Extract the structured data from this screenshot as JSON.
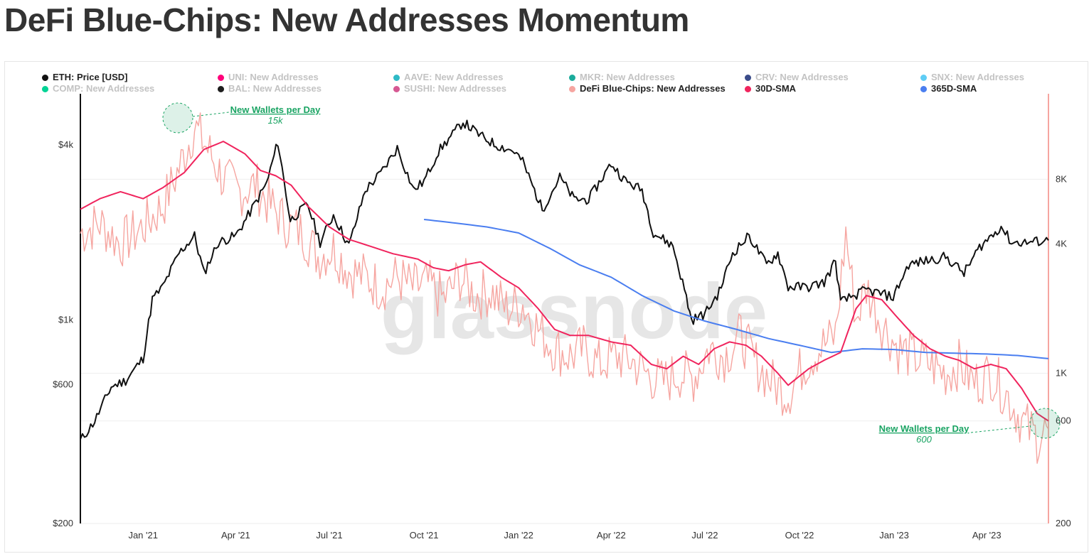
{
  "page": {
    "title": "DeFi Blue-Chips: New Addresses Momentum"
  },
  "watermark": "glassnode",
  "legend": [
    {
      "label": "ETH: Price [USD]",
      "color": "#111111",
      "active": true
    },
    {
      "label": "UNI: New Addresses",
      "color": "#ff007a",
      "active": false
    },
    {
      "label": "AAVE: New Addresses",
      "color": "#2ebac6",
      "active": false
    },
    {
      "label": "MKR: New Addresses",
      "color": "#1aab9b",
      "active": false
    },
    {
      "label": "CRV: New Addresses",
      "color": "#3a4c8a",
      "active": false
    },
    {
      "label": "SNX: New Addresses",
      "color": "#5fcdf5",
      "active": false
    },
    {
      "label": "COMP: New Addresses",
      "color": "#00d395",
      "active": false
    },
    {
      "label": "BAL: New Addresses",
      "color": "#1e1e1e",
      "active": false
    },
    {
      "label": "SUSHI: New Addresses",
      "color": "#d65892",
      "active": false
    },
    {
      "label": "DeFi Blue-Chips: New Addresses",
      "color": "#f6a5a0",
      "active": true
    },
    {
      "label": "30D-SMA",
      "color": "#f0245d",
      "active": true
    },
    {
      "label": "365D-SMA",
      "color": "#4a7ef0",
      "active": true
    }
  ],
  "annotations": [
    {
      "title": "New Wallets per Day",
      "value": "15k"
    },
    {
      "title": "New Wallets per Day",
      "value": "600"
    }
  ],
  "chart_data": {
    "type": "line",
    "title": "DeFi Blue-Chips: New Addresses Momentum",
    "x_ticks": [
      "Jan '21",
      "Apr '21",
      "Jul '21",
      "Oct '21",
      "Jan '22",
      "Apr '22",
      "Jul '22",
      "Oct '22",
      "Jan '23",
      "Apr '23"
    ],
    "x_range": [
      "2020-11-01",
      "2023-05-31"
    ],
    "y_left": {
      "scale": "log",
      "range": [
        200,
        6000
      ],
      "ticks": [
        200,
        600,
        1000,
        4000
      ],
      "tick_labels": [
        "$200",
        "$600",
        "$1k",
        "$4k"
      ],
      "unit": "USD"
    },
    "y_right": {
      "scale": "log",
      "range": [
        200,
        20000
      ],
      "ticks": [
        200,
        600,
        1000,
        4000,
        8000
      ],
      "tick_labels": [
        "200",
        "600",
        "1K",
        "4K",
        "8K"
      ]
    },
    "grid": true,
    "legend_position": "top",
    "series": [
      {
        "name": "ETH: Price [USD]",
        "axis": "left",
        "color": "#111111",
        "points": [
          [
            "2020-11-01",
            385
          ],
          [
            "2020-11-15",
            450
          ],
          [
            "2020-12-01",
            590
          ],
          [
            "2020-12-15",
            620
          ],
          [
            "2021-01-01",
            740
          ],
          [
            "2021-01-10",
            1180
          ],
          [
            "2021-01-20",
            1300
          ],
          [
            "2021-02-05",
            1700
          ],
          [
            "2021-02-20",
            1950
          ],
          [
            "2021-03-01",
            1450
          ],
          [
            "2021-03-15",
            1850
          ],
          [
            "2021-04-01",
            1950
          ],
          [
            "2021-04-15",
            2350
          ],
          [
            "2021-05-01",
            2950
          ],
          [
            "2021-05-12",
            4100
          ],
          [
            "2021-05-24",
            2200
          ],
          [
            "2021-06-10",
            2500
          ],
          [
            "2021-06-22",
            1850
          ],
          [
            "2021-07-05",
            2300
          ],
          [
            "2021-07-20",
            1800
          ],
          [
            "2021-08-05",
            2800
          ],
          [
            "2021-08-20",
            3200
          ],
          [
            "2021-09-05",
            3900
          ],
          [
            "2021-09-21",
            2800
          ],
          [
            "2021-10-01",
            3000
          ],
          [
            "2021-10-15",
            3800
          ],
          [
            "2021-11-08",
            4800
          ],
          [
            "2021-11-25",
            4300
          ],
          [
            "2021-12-10",
            4000
          ],
          [
            "2021-12-28",
            3800
          ],
          [
            "2022-01-05",
            3500
          ],
          [
            "2022-01-24",
            2400
          ],
          [
            "2022-02-10",
            3100
          ],
          [
            "2022-02-24",
            2600
          ],
          [
            "2022-03-10",
            2600
          ],
          [
            "2022-04-01",
            3450
          ],
          [
            "2022-04-15",
            3000
          ],
          [
            "2022-05-01",
            2800
          ],
          [
            "2022-05-12",
            2000
          ],
          [
            "2022-05-31",
            1800
          ],
          [
            "2022-06-13",
            1200
          ],
          [
            "2022-06-18",
            1000
          ],
          [
            "2022-07-01",
            1050
          ],
          [
            "2022-07-15",
            1250
          ],
          [
            "2022-07-28",
            1700
          ],
          [
            "2022-08-13",
            1950
          ],
          [
            "2022-08-30",
            1550
          ],
          [
            "2022-09-10",
            1700
          ],
          [
            "2022-09-20",
            1300
          ],
          [
            "2022-10-10",
            1300
          ],
          [
            "2022-10-25",
            1350
          ],
          [
            "2022-11-05",
            1600
          ],
          [
            "2022-11-10",
            1150
          ],
          [
            "2022-11-20",
            1200
          ],
          [
            "2022-12-05",
            1270
          ],
          [
            "2022-12-31",
            1200
          ],
          [
            "2023-01-15",
            1550
          ],
          [
            "2023-02-01",
            1600
          ],
          [
            "2023-02-20",
            1650
          ],
          [
            "2023-03-10",
            1450
          ],
          [
            "2023-03-25",
            1780
          ],
          [
            "2023-04-15",
            2100
          ],
          [
            "2023-04-25",
            1850
          ],
          [
            "2023-05-10",
            1850
          ],
          [
            "2023-05-31",
            1880
          ]
        ]
      },
      {
        "name": "DeFi Blue-Chips: New Addresses",
        "axis": "right",
        "color": "#f6a5a0",
        "points": [
          [
            "2020-11-01",
            4500
          ],
          [
            "2020-11-20",
            5000
          ],
          [
            "2020-12-10",
            4000
          ],
          [
            "2021-01-01",
            4800
          ],
          [
            "2021-01-20",
            6000
          ],
          [
            "2021-02-05",
            9000
          ],
          [
            "2021-02-20",
            14000
          ],
          [
            "2021-03-05",
            11000
          ],
          [
            "2021-03-20",
            8000
          ],
          [
            "2021-04-05",
            7000
          ],
          [
            "2021-04-20",
            7500
          ],
          [
            "2021-05-05",
            6000
          ],
          [
            "2021-05-20",
            5000
          ],
          [
            "2021-06-05",
            4500
          ],
          [
            "2021-06-20",
            3500
          ],
          [
            "2021-07-05",
            3800
          ],
          [
            "2021-07-20",
            3000
          ],
          [
            "2021-08-05",
            2800
          ],
          [
            "2021-08-20",
            2500
          ],
          [
            "2021-09-05",
            2800
          ],
          [
            "2021-09-20",
            2500
          ],
          [
            "2021-10-05",
            2600
          ],
          [
            "2021-10-20",
            2200
          ],
          [
            "2021-11-05",
            2800
          ],
          [
            "2021-11-20",
            2300
          ],
          [
            "2021-12-05",
            2400
          ],
          [
            "2021-12-20",
            2000
          ],
          [
            "2022-01-05",
            2100
          ],
          [
            "2022-01-20",
            1600
          ],
          [
            "2022-02-05",
            1300
          ],
          [
            "2022-02-20",
            1200
          ],
          [
            "2022-03-05",
            1300
          ],
          [
            "2022-03-20",
            1100
          ],
          [
            "2022-04-05",
            1200
          ],
          [
            "2022-04-20",
            1150
          ],
          [
            "2022-05-05",
            1000
          ],
          [
            "2022-05-20",
            900
          ],
          [
            "2022-06-05",
            1000
          ],
          [
            "2022-06-20",
            950
          ],
          [
            "2022-07-05",
            1300
          ],
          [
            "2022-07-20",
            1200
          ],
          [
            "2022-08-05",
            1500
          ],
          [
            "2022-08-20",
            1100
          ],
          [
            "2022-09-05",
            900
          ],
          [
            "2022-09-20",
            800
          ],
          [
            "2022-10-05",
            1100
          ],
          [
            "2022-10-20",
            1300
          ],
          [
            "2022-11-05",
            1500
          ],
          [
            "2022-11-15",
            4500
          ],
          [
            "2022-11-25",
            1800
          ],
          [
            "2022-12-05",
            2500
          ],
          [
            "2022-12-20",
            1700
          ],
          [
            "2023-01-05",
            1300
          ],
          [
            "2023-01-20",
            1200
          ],
          [
            "2023-02-05",
            1100
          ],
          [
            "2023-02-20",
            1000
          ],
          [
            "2023-03-05",
            1100
          ],
          [
            "2023-03-20",
            900
          ],
          [
            "2023-04-05",
            1000
          ],
          [
            "2023-04-20",
            800
          ],
          [
            "2023-05-05",
            600
          ],
          [
            "2023-05-20",
            500
          ],
          [
            "2023-05-31",
            550
          ]
        ]
      },
      {
        "name": "30D-SMA",
        "axis": "right",
        "color": "#f0245d",
        "points": [
          [
            "2020-11-01",
            5800
          ],
          [
            "2020-11-20",
            6500
          ],
          [
            "2020-12-10",
            7000
          ],
          [
            "2021-01-01",
            6500
          ],
          [
            "2021-01-20",
            7300
          ],
          [
            "2021-02-10",
            8600
          ],
          [
            "2021-03-01",
            11000
          ],
          [
            "2021-03-20",
            12000
          ],
          [
            "2021-04-10",
            10500
          ],
          [
            "2021-04-25",
            8800
          ],
          [
            "2021-05-10",
            8300
          ],
          [
            "2021-05-25",
            7500
          ],
          [
            "2021-06-10",
            6000
          ],
          [
            "2021-07-01",
            4800
          ],
          [
            "2021-07-20",
            4200
          ],
          [
            "2021-08-10",
            3900
          ],
          [
            "2021-09-01",
            3600
          ],
          [
            "2021-09-25",
            3400
          ],
          [
            "2021-10-10",
            3100
          ],
          [
            "2021-10-25",
            3000
          ],
          [
            "2021-11-10",
            3200
          ],
          [
            "2021-11-25",
            3300
          ],
          [
            "2021-12-15",
            2800
          ],
          [
            "2022-01-01",
            2500
          ],
          [
            "2022-01-20",
            2000
          ],
          [
            "2022-02-05",
            1600
          ],
          [
            "2022-02-20",
            1500
          ],
          [
            "2022-03-10",
            1500
          ],
          [
            "2022-04-01",
            1400
          ],
          [
            "2022-04-20",
            1350
          ],
          [
            "2022-05-10",
            1100
          ],
          [
            "2022-05-25",
            1050
          ],
          [
            "2022-06-10",
            1200
          ],
          [
            "2022-06-25",
            1100
          ],
          [
            "2022-07-10",
            1300
          ],
          [
            "2022-07-25",
            1400
          ],
          [
            "2022-08-10",
            1350
          ],
          [
            "2022-08-25",
            1200
          ],
          [
            "2022-09-10",
            1000
          ],
          [
            "2022-09-20",
            880
          ],
          [
            "2022-10-10",
            1050
          ],
          [
            "2022-10-25",
            1150
          ],
          [
            "2022-11-10",
            1250
          ],
          [
            "2022-11-25",
            2000
          ],
          [
            "2022-12-05",
            2300
          ],
          [
            "2022-12-20",
            2200
          ],
          [
            "2023-01-05",
            1800
          ],
          [
            "2023-01-20",
            1500
          ],
          [
            "2023-02-05",
            1300
          ],
          [
            "2023-02-20",
            1200
          ],
          [
            "2023-03-05",
            1150
          ],
          [
            "2023-03-20",
            1050
          ],
          [
            "2023-04-05",
            1100
          ],
          [
            "2023-04-20",
            1050
          ],
          [
            "2023-05-05",
            850
          ],
          [
            "2023-05-20",
            650
          ],
          [
            "2023-05-31",
            600
          ]
        ]
      },
      {
        "name": "365D-SMA",
        "axis": "right",
        "color": "#4a7ef0",
        "points": [
          [
            "2021-10-01",
            5200
          ],
          [
            "2021-11-01",
            5000
          ],
          [
            "2021-12-01",
            4800
          ],
          [
            "2022-01-01",
            4500
          ],
          [
            "2022-02-01",
            3800
          ],
          [
            "2022-03-01",
            3200
          ],
          [
            "2022-04-01",
            2800
          ],
          [
            "2022-05-01",
            2300
          ],
          [
            "2022-06-01",
            1950
          ],
          [
            "2022-07-01",
            1750
          ],
          [
            "2022-08-01",
            1600
          ],
          [
            "2022-09-01",
            1450
          ],
          [
            "2022-10-01",
            1350
          ],
          [
            "2022-11-01",
            1250
          ],
          [
            "2022-12-01",
            1300
          ],
          [
            "2023-01-01",
            1290
          ],
          [
            "2023-02-01",
            1250
          ],
          [
            "2023-03-01",
            1240
          ],
          [
            "2023-04-01",
            1230
          ],
          [
            "2023-05-01",
            1210
          ],
          [
            "2023-05-31",
            1170
          ]
        ]
      }
    ]
  }
}
